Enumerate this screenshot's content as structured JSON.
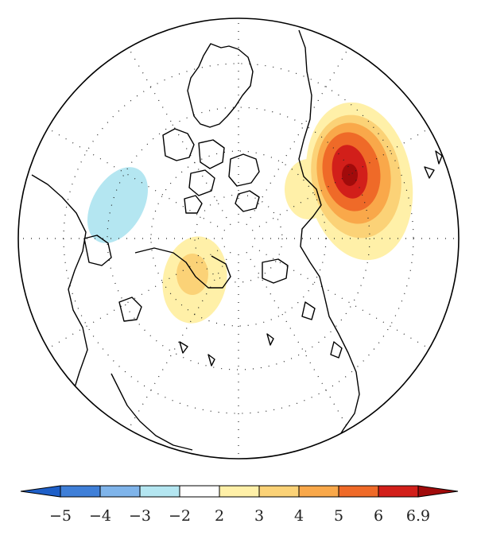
{
  "map": {
    "projection": "north-polar-stereographic",
    "gridlines": "dotted",
    "anomalies": [
      {
        "name": "anomaly-max-east",
        "sign": "positive",
        "peak": 6.9
      },
      {
        "name": "anomaly-negative-west",
        "sign": "negative",
        "peak": -3
      },
      {
        "name": "anomaly-positive-south",
        "sign": "positive",
        "peak": 4
      },
      {
        "name": "anomaly-positive-east-fringe",
        "sign": "positive",
        "peak": 3
      }
    ]
  },
  "colorbar": {
    "levels": [
      "−5",
      "−4",
      "−3",
      "−2",
      "2",
      "3",
      "4",
      "5",
      "6",
      "6.9"
    ],
    "colors": [
      "#3f7fd8",
      "#7fb4ea",
      "#b4e6f1",
      "#ffffff",
      "#fff0a8",
      "#fbd277",
      "#f9a84a",
      "#ef6a28",
      "#d21f1a"
    ],
    "extend": "both",
    "under_color": "#1e5fc8",
    "over_color": "#a10b0b"
  }
}
